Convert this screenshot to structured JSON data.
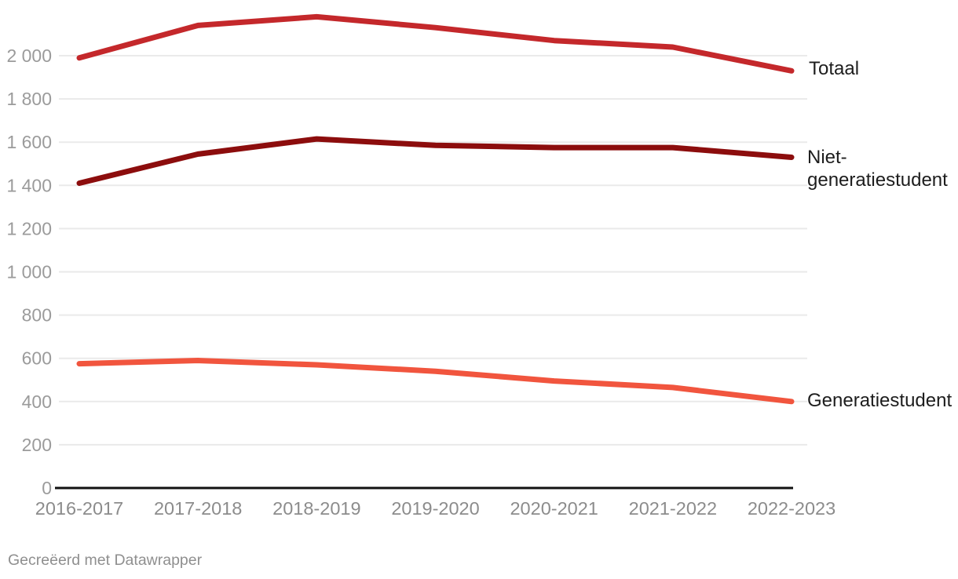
{
  "chart_data": {
    "type": "line",
    "x": [
      "2016-2017",
      "2017-2018",
      "2018-2019",
      "2019-2020",
      "2020-2021",
      "2021-2022",
      "2022-2023"
    ],
    "series": [
      {
        "name": "Totaal",
        "color": "#c4282b",
        "values": [
          1990,
          2140,
          2180,
          2130,
          2070,
          2040,
          1930
        ]
      },
      {
        "name": "Niet-generatiestudent",
        "color": "#8c0d0d",
        "values": [
          1410,
          1545,
          1615,
          1585,
          1575,
          1575,
          1530
        ]
      },
      {
        "name": "Generatiestudent",
        "color": "#f1553e",
        "values": [
          575,
          590,
          570,
          540,
          495,
          465,
          400
        ]
      }
    ],
    "title": "",
    "xlabel": "",
    "ylabel": "",
    "ylim": [
      0,
      2200
    ],
    "yticks": [
      0,
      200,
      400,
      600,
      800,
      1000,
      1200,
      1400,
      1600,
      1800,
      2000
    ],
    "ytick_labels": [
      "0",
      "200",
      "400",
      "600",
      "800",
      "1 000",
      "1 200",
      "1 400",
      "1 600",
      "1 800",
      "2 000"
    ],
    "grid": true,
    "legend_position": "direct-labels-right"
  },
  "styles": {
    "grid_color": "#eaeaea",
    "axis_line_color": "#111111",
    "ytick_color": "#9b9b9b",
    "xtick_color": "#8c8c8c",
    "label_color": "#1d1d1d",
    "line_width": 7
  },
  "footer": {
    "credit": "Gecreëerd met Datawrapper"
  }
}
